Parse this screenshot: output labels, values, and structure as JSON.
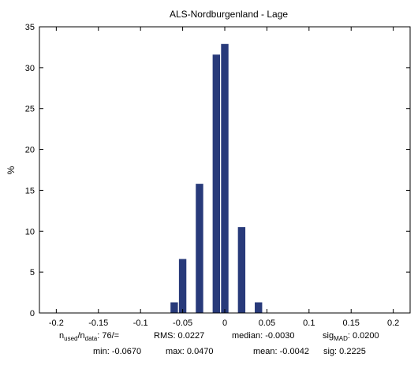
{
  "chart_data": {
    "type": "bar",
    "title": "ALS-Nordburgenland - Lage",
    "xlabel": "",
    "ylabel": "%",
    "xlim": [
      -0.22,
      0.22
    ],
    "ylim": [
      0,
      35
    ],
    "grid": false,
    "x_ticks": [
      -0.2,
      -0.15,
      -0.1,
      -0.05,
      0,
      0.05,
      0.1,
      0.15,
      0.2
    ],
    "x_tick_labels": [
      "-0.2",
      "-0.15",
      "-0.1",
      "-0.05",
      "0",
      "0.05",
      "0.1",
      "0.15",
      "0.2"
    ],
    "y_ticks": [
      0,
      5,
      10,
      15,
      20,
      25,
      30,
      35
    ],
    "y_tick_labels": [
      "0",
      "5",
      "10",
      "15",
      "20",
      "25",
      "30",
      "35"
    ],
    "bin_width": 0.01,
    "x": [
      -0.07,
      -0.06,
      -0.05,
      -0.04,
      -0.03,
      -0.02,
      -0.01,
      0.0,
      0.01,
      0.02,
      0.03,
      0.04,
      0.05,
      0.06
    ],
    "values": [
      0,
      1.3,
      6.6,
      0,
      15.8,
      0,
      31.6,
      32.9,
      0,
      10.5,
      0,
      1.3,
      0,
      0
    ],
    "bars": [
      {
        "x": -0.06,
        "value": 1.3
      },
      {
        "x": -0.05,
        "value": 6.6
      },
      {
        "x": -0.03,
        "value": 15.8
      },
      {
        "x": -0.01,
        "value": 31.6
      },
      {
        "x": 0.0,
        "value": 32.9
      },
      {
        "x": 0.02,
        "value": 10.5
      },
      {
        "x": 0.04,
        "value": 1.3
      }
    ],
    "colors": {
      "bar": "#283a7a",
      "axis": "#000000"
    }
  },
  "stats": {
    "line1": {
      "n_label_prefix": "n",
      "n_used_sub": "used",
      "n_slash": "/n",
      "n_data_sub": "data",
      "n_value": ": 76/=",
      "rms": "RMS: 0.0227",
      "median": "median: -0.0030",
      "sig_label": "sig",
      "sig_sub": "MAD",
      "sig_value": ": 0.0200"
    },
    "line2": {
      "min": "min: -0.0670",
      "max": "max: 0.0470",
      "mean": "mean: -0.0042",
      "sig": "sig: 0.2225"
    }
  }
}
